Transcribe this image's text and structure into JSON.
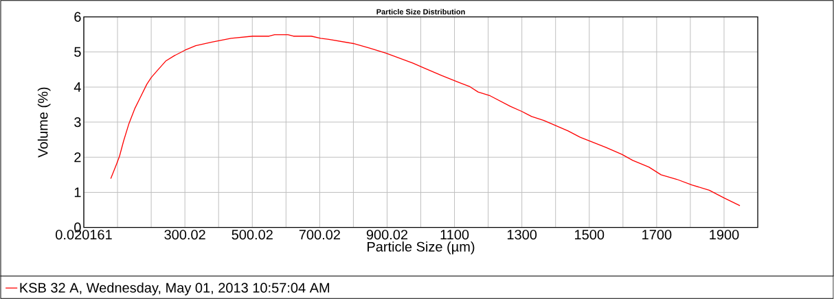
{
  "chart_data": {
    "type": "line",
    "title": "Particle Size Distribution",
    "xlabel": "Particle Size (µm)",
    "ylabel": "Volume (%)",
    "xlim": [
      0.020161,
      2000
    ],
    "ylim": [
      0,
      6
    ],
    "yticks": [
      0,
      1,
      2,
      3,
      4,
      5,
      6
    ],
    "xticks": [
      0.020161,
      {
        "value": 100.02,
        "label": null
      },
      {
        "value": 200.02,
        "label": null
      },
      300.02,
      {
        "value": 400.02,
        "label": null
      },
      500.02,
      {
        "value": 600.02,
        "label": null
      },
      700.02,
      {
        "value": 800.02,
        "label": null
      },
      900.02,
      {
        "value": 1000,
        "label": null
      },
      1100,
      {
        "value": 1200,
        "label": null
      },
      1300,
      {
        "value": 1400,
        "label": null
      },
      1500,
      {
        "value": 1600,
        "label": null
      },
      1700,
      {
        "value": 1800,
        "label": null
      },
      1900
    ],
    "grid": true,
    "legend": "bottom",
    "marker": "none",
    "line_style": "solid",
    "series": [
      {
        "name": "KSB 32 A, Wednesday, May 01, 2013 10:57:04 AM",
        "color": "#ff0000",
        "x": [
          80,
          97,
          106,
          118,
          134,
          151,
          167,
          187,
          200,
          219,
          243,
          268,
          300,
          332,
          380,
          437,
          501,
          550,
          566,
          606,
          622,
          675,
          703,
          727,
          800,
          848,
          896,
          977,
          1006,
          1062,
          1114,
          1146,
          1170,
          1206,
          1266,
          1301,
          1329,
          1365,
          1437,
          1473,
          1549,
          1597,
          1629,
          1677,
          1713,
          1760,
          1804,
          1856,
          1900,
          1947
        ],
        "values": [
          1.39,
          1.8,
          2.03,
          2.46,
          2.96,
          3.38,
          3.69,
          4.08,
          4.27,
          4.48,
          4.74,
          4.89,
          5.05,
          5.18,
          5.28,
          5.39,
          5.45,
          5.45,
          5.49,
          5.49,
          5.45,
          5.45,
          5.39,
          5.36,
          5.24,
          5.11,
          4.97,
          4.68,
          4.56,
          4.33,
          4.13,
          4.01,
          3.86,
          3.75,
          3.45,
          3.3,
          3.16,
          3.05,
          2.75,
          2.57,
          2.28,
          2.08,
          1.91,
          1.72,
          1.5,
          1.37,
          1.21,
          1.06,
          0.84,
          0.62
        ]
      }
    ]
  }
}
